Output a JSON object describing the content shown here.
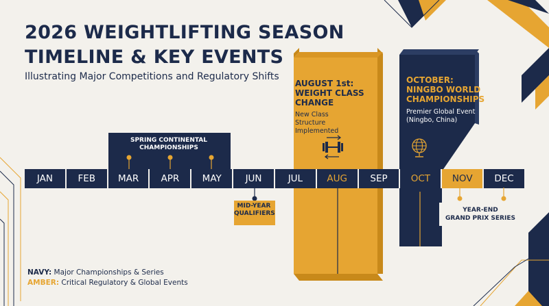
{
  "title_line1": "2026 WEIGHTLIFTING SEASON",
  "title_line2": "TIMELINE & KEY EVENTS",
  "subtitle": "Illustrating Major Competitions and Regulatory Shifts",
  "months": [
    "JAN",
    "FEB",
    "MAR",
    "APR",
    "MAY",
    "JUN",
    "JUL",
    "AUG",
    "SEP",
    "OCT",
    "NOV",
    "DEC"
  ],
  "highlighted_months": [
    "AUG",
    "OCT",
    "NOV"
  ],
  "events": {
    "spring": {
      "label": "SPRING CONTINENTAL\nCHAMPIONSHIPS"
    },
    "midyear": {
      "label": "MID-YEAR\nQUALIFIERS"
    },
    "august": {
      "title": "AUGUST 1st:\nWEIGHT CLASS\nCHANGE",
      "description": "New Class\nStructure\nImplemented",
      "icon": "barbell-swap-icon"
    },
    "october": {
      "title": "OCTOBER:\nNINGBO WORLD\nCHAMPIONSHIPS",
      "description": "Premier Global Event\n(Ningbo, China)",
      "icon": "globe-icon"
    },
    "yearend": {
      "label": "YEAR-END\nGRAND PRIX SERIES"
    }
  },
  "legend": {
    "navy_key": "NAVY:",
    "navy_text": " Major Championships & Series",
    "amber_key": "AMBER:",
    "amber_text": " Critical Regulatory & Global Events"
  },
  "colors": {
    "navy": "#1c2a4a",
    "amber": "#e6a532",
    "background": "#f3f1ec"
  }
}
